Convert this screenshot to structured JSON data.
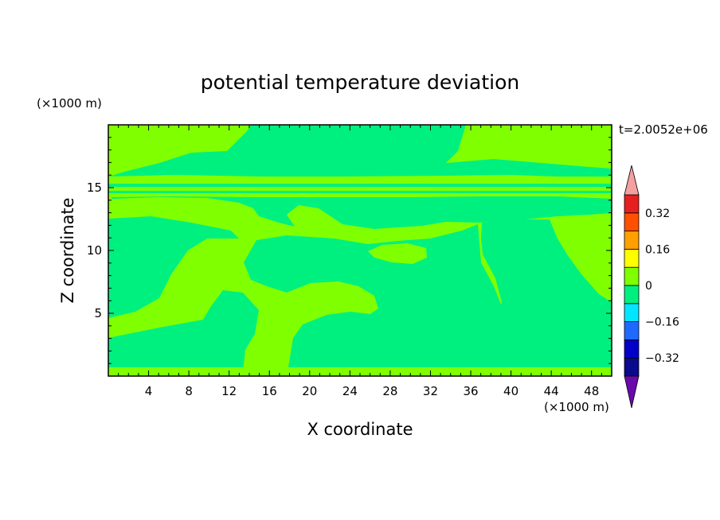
{
  "chart_data": {
    "type": "heatmap",
    "title": "potential temperature deviation",
    "xlabel": "X coordinate",
    "ylabel": "Z coordinate",
    "x_unit": "(×1000 m)",
    "y_unit": "(×1000 m)",
    "time_label": "t=2.0052e+06",
    "xlim": [
      0,
      50
    ],
    "ylim": [
      0,
      20
    ],
    "x_ticks": [
      4,
      8,
      12,
      16,
      20,
      24,
      28,
      32,
      36,
      40,
      44,
      48
    ],
    "y_ticks": [
      5,
      10,
      15
    ],
    "colorbar": {
      "levels": [
        -0.4,
        -0.32,
        -0.24,
        -0.16,
        -0.08,
        0,
        0.08,
        0.16,
        0.24,
        0.32,
        0.4
      ],
      "tick_labels": [
        "0.32",
        "0.16",
        "0",
        "−0.16",
        "−0.32"
      ],
      "tick_values": [
        0.32,
        0.16,
        0,
        -0.16,
        -0.32
      ],
      "band_colors": [
        "#0a0a8c",
        "#0000c8",
        "#1e6aff",
        "#00e6ff",
        "#00f080",
        "#80ff00",
        "#ffff00",
        "#ffa000",
        "#ff5000",
        "#e62020"
      ],
      "over_color": "#f5a0a0",
      "under_color": "#6a0aaa"
    },
    "field_values": {
      "dominant_positive_band": [
        0,
        0.08
      ],
      "dominant_negative_band": [
        -0.08,
        0
      ],
      "positive_color": "#80ff00",
      "negative_color": "#00f080"
    }
  }
}
